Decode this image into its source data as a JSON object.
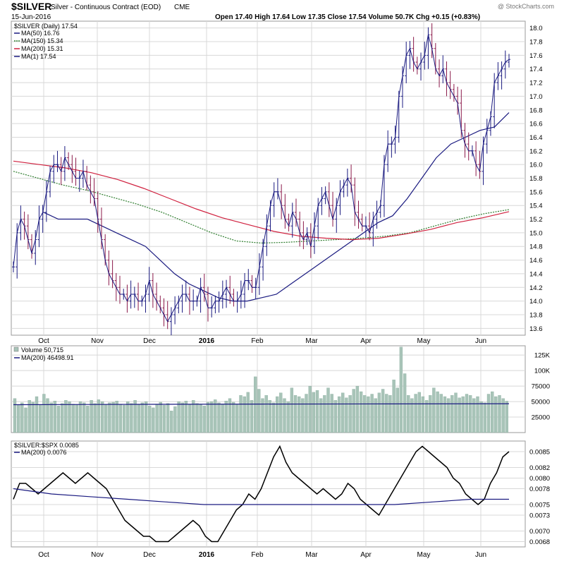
{
  "header": {
    "symbol": "$SILVER",
    "name": "Silver - Continuous Contract (EOD)",
    "exchange": "CME",
    "watermark": "@ StockCharts.com",
    "date": "15-Jun-2016",
    "ohlc": "Open 17.40  High 17.64  Low 17.35  Close 17.54  Volume 50.7K  Chg +0.15 (+0.83%)",
    "ohlc_color": "#000000",
    "chg_up_arrow_color": "#1a8a1a"
  },
  "legend": {
    "price": "$SILVER (Daily) 17.54",
    "ma50": "MA(50) 16.76",
    "ma150": "MA(150) 15.34",
    "ma200": "MA(200) 15.31",
    "ma1": "MA(1) 17.54",
    "volume": "Volume 50,715",
    "vol_ma": "MA(200) 46498.91",
    "ratio": "$SILVER:$SPX 0.0085",
    "ratio_ma": "MA(200) 0.0076"
  },
  "colors": {
    "ma50": "#1a1a80",
    "ma150": "#2e7d2e",
    "ma200": "#d0213f",
    "ma1": "#1a1a80",
    "bar_up": "#1a1a80",
    "bar_down": "#8b1a4a",
    "volume": "#a8c4b8",
    "grid": "#d8d8d8"
  },
  "x_labels": [
    "Oct",
    "Nov",
    "Dec",
    "2016",
    "Feb",
    "Mar",
    "Apr",
    "May",
    "Jun"
  ],
  "chart_data": [
    {
      "type": "line",
      "title": "$SILVER (Daily)",
      "ylim": [
        13.5,
        18.1
      ],
      "y_ticks": [
        "13.6",
        "13.8",
        "14.0",
        "14.2",
        "14.4",
        "14.6",
        "14.8",
        "15.0",
        "15.2",
        "15.4",
        "15.6",
        "15.8",
        "16.0",
        "16.2",
        "16.4",
        "16.6",
        "16.8",
        "17.0",
        "17.2",
        "17.4",
        "17.6",
        "17.8",
        "18.0"
      ],
      "scale": "log",
      "grid": true,
      "legend_position": "top-left",
      "series": [
        {
          "name": "$SILVER (Daily)",
          "style": "ohlc",
          "values": [
            14.5,
            15.0,
            15.2,
            15.1,
            14.9,
            14.7,
            14.9,
            15.2,
            15.3,
            15.6,
            15.9,
            16.0,
            16.0,
            15.9,
            16.1,
            16.0,
            15.9,
            15.8,
            15.8,
            15.9,
            15.7,
            15.6,
            15.5,
            15.2,
            14.9,
            14.6,
            14.4,
            14.3,
            14.2,
            14.1,
            14.1,
            14.0,
            14.1,
            14.1,
            14.0,
            14.0,
            14.1,
            14.3,
            14.1,
            14.0,
            13.9,
            13.8,
            13.7,
            13.8,
            13.9,
            14.0,
            14.1,
            14.1,
            14.0,
            14.0,
            14.0,
            14.2,
            14.1,
            13.9,
            13.9,
            14.0,
            14.0,
            14.1,
            14.2,
            14.1,
            14.0,
            14.0,
            14.1,
            14.3,
            14.3,
            14.2,
            14.2,
            14.5,
            14.8,
            15.1,
            15.4,
            15.6,
            15.6,
            15.4,
            15.2,
            15.1,
            15.3,
            15.2,
            15.0,
            14.9,
            15.0,
            14.8,
            15.1,
            15.4,
            15.5,
            15.6,
            15.4,
            15.2,
            15.4,
            15.6,
            15.7,
            15.8,
            15.7,
            15.3,
            15.2,
            15.1,
            15.1,
            15.0,
            15.2,
            15.3,
            15.4,
            16.0,
            16.3,
            16.3,
            16.4,
            17.0,
            17.3,
            17.6,
            17.7,
            17.5,
            17.4,
            17.5,
            17.6,
            17.9,
            17.7,
            17.4,
            17.3,
            17.4,
            17.2,
            17.1,
            17.0,
            16.9,
            16.5,
            16.3,
            16.2,
            16.2,
            16.0,
            15.9,
            16.3,
            16.5,
            16.7,
            17.2,
            17.3,
            17.4,
            17.5,
            17.54
          ]
        },
        {
          "name": "MA(50)",
          "values": [
            15.3,
            15.2,
            15.2,
            15.2,
            15.1,
            15.0,
            14.9,
            14.8,
            14.6,
            14.4,
            14.25,
            14.15,
            14.05,
            14.0,
            14.0,
            14.05,
            14.1,
            14.25,
            14.4,
            14.55,
            14.7,
            14.85,
            15.0,
            15.15,
            15.25,
            15.5,
            15.8,
            16.1,
            16.3,
            16.4,
            16.5,
            16.55,
            16.76
          ]
        },
        {
          "name": "MA(150)",
          "values": [
            15.9,
            15.8,
            15.7,
            15.62,
            15.52,
            15.42,
            15.3,
            15.15,
            15.0,
            14.88,
            14.85,
            14.86,
            14.88,
            14.9,
            14.92,
            14.95,
            15.0,
            15.1,
            15.2,
            15.28,
            15.34
          ]
        },
        {
          "name": "MA(200)",
          "values": [
            16.05,
            16.0,
            15.95,
            15.88,
            15.78,
            15.65,
            15.5,
            15.35,
            15.22,
            15.12,
            15.02,
            14.95,
            14.92,
            14.9,
            14.92,
            14.98,
            15.05,
            15.15,
            15.22,
            15.31
          ]
        }
      ]
    },
    {
      "type": "bar",
      "title": "Volume",
      "ylim": [
        0,
        140000
      ],
      "y_ticks": [
        "25000",
        "50000",
        "75000",
        "100K",
        "125K"
      ],
      "series": [
        {
          "name": "Volume",
          "values": [
            55000,
            45000,
            48000,
            40000,
            52000,
            49000,
            58000,
            45000,
            62000,
            55000,
            48000,
            51000,
            43000,
            47000,
            52000,
            50000,
            46000,
            45000,
            50000,
            48000,
            43000,
            52000,
            47000,
            53000,
            50000,
            45000,
            48000,
            49000,
            51000,
            46000,
            44000,
            50000,
            47000,
            52000,
            45000,
            48000,
            50000,
            43000,
            40000,
            46000,
            49000,
            44000,
            47000,
            35000,
            42000,
            50000,
            48000,
            51000,
            46000,
            52000,
            47000,
            45000,
            43000,
            49000,
            50000,
            53000,
            48000,
            46000,
            51000,
            55000,
            49000,
            45000,
            60000,
            58000,
            65000,
            52000,
            90000,
            70000,
            55000,
            60000,
            52000,
            48000,
            58000,
            64000,
            55000,
            50000,
            72000,
            60000,
            58000,
            55000,
            62000,
            75000,
            65000,
            68000,
            55000,
            60000,
            72000,
            62000,
            52000,
            58000,
            64000,
            56000,
            60000,
            70000,
            75000,
            66000,
            60000,
            58000,
            62000,
            55000,
            64000,
            70000,
            62000,
            60000,
            85000,
            72000,
            138000,
            95000,
            60000,
            55000,
            62000,
            65000,
            58000,
            52000,
            60000,
            72000,
            66000,
            62000,
            58000,
            55000,
            60000,
            64000,
            56000,
            58000,
            62000,
            60000,
            55000,
            58000,
            50000,
            48000,
            62000,
            66000,
            58000,
            60000,
            55000,
            50715
          ]
        },
        {
          "name": "MA(200)",
          "values": [
            45000,
            45500,
            46000,
            46200,
            46498.91
          ]
        }
      ]
    },
    {
      "type": "line",
      "title": "$SILVER:$SPX",
      "ylim": [
        0.0067,
        0.0087
      ],
      "y_ticks": [
        "0.0068",
        "0.0070",
        "0.0073",
        "0.0075",
        "0.0078",
        "0.0080",
        "0.0082",
        "0.0085"
      ],
      "series": [
        {
          "name": "$SILVER:$SPX",
          "values": [
            0.0076,
            0.0079,
            0.0079,
            0.0078,
            0.0077,
            0.0078,
            0.0079,
            0.008,
            0.0081,
            0.008,
            0.0079,
            0.008,
            0.0081,
            0.008,
            0.0079,
            0.0078,
            0.0076,
            0.0074,
            0.0072,
            0.0071,
            0.007,
            0.0069,
            0.0069,
            0.0068,
            0.0068,
            0.0068,
            0.0069,
            0.007,
            0.0071,
            0.0072,
            0.0071,
            0.0069,
            0.0068,
            0.0068,
            0.007,
            0.0072,
            0.0074,
            0.0075,
            0.0077,
            0.0076,
            0.0078,
            0.0081,
            0.0084,
            0.0086,
            0.0083,
            0.0081,
            0.008,
            0.0079,
            0.0078,
            0.0077,
            0.0078,
            0.0077,
            0.0076,
            0.0077,
            0.0079,
            0.0078,
            0.0076,
            0.0075,
            0.0074,
            0.0073,
            0.0075,
            0.0077,
            0.0079,
            0.0081,
            0.0083,
            0.0085,
            0.0086,
            0.0085,
            0.0084,
            0.0083,
            0.0082,
            0.008,
            0.0079,
            0.0077,
            0.0076,
            0.0075,
            0.0076,
            0.0079,
            0.0081,
            0.0084,
            0.0085
          ]
        },
        {
          "name": "MA(200)",
          "values": [
            0.0078,
            0.0077,
            0.00765,
            0.0076,
            0.00755,
            0.0075,
            0.0075,
            0.0075,
            0.0075,
            0.0075,
            0.0075,
            0.00755,
            0.0076,
            0.0076
          ]
        }
      ]
    }
  ]
}
